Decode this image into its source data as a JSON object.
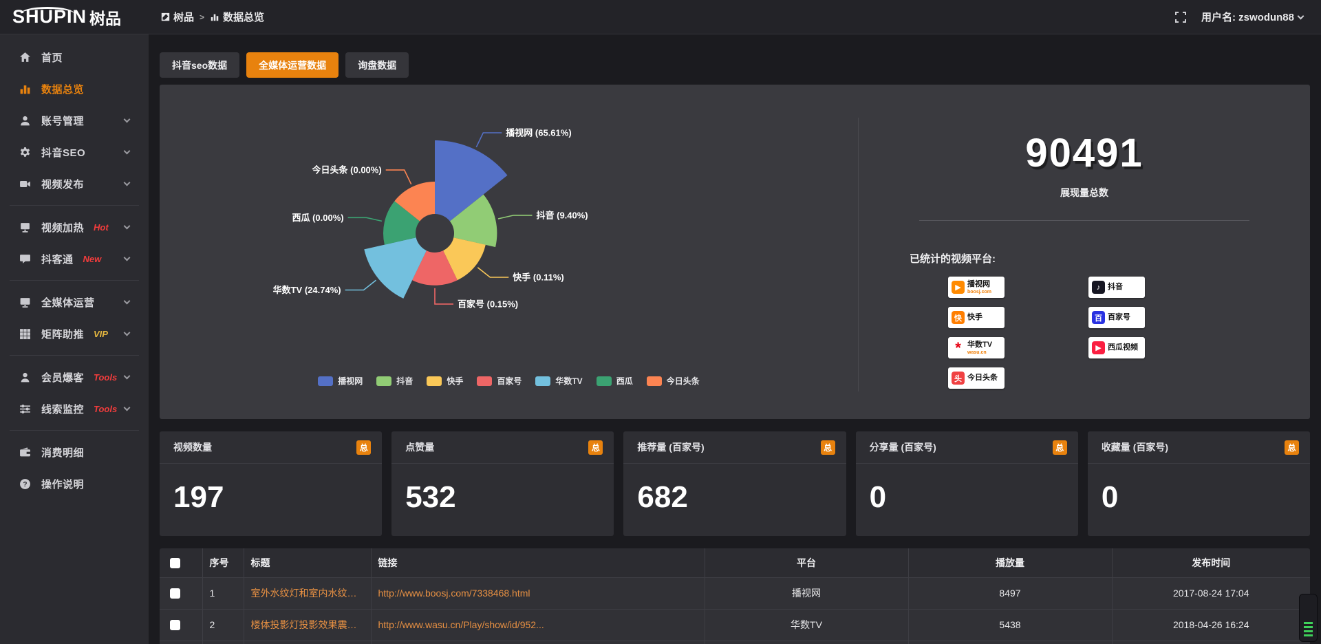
{
  "topbar": {
    "logo_en": "SHUPIN",
    "logo_cn": "树品",
    "breadcrumb": {
      "root": "树品",
      "separator": ">",
      "current": "数据总览"
    },
    "username": "用户名: zswodun88"
  },
  "sidebar": {
    "items": [
      {
        "icon": "home-icon",
        "label": "首页",
        "active": false,
        "chevron": false,
        "badge": "",
        "divider_after": false
      },
      {
        "icon": "bar-chart-icon",
        "label": "数据总览",
        "active": true,
        "chevron": false,
        "badge": "",
        "divider_after": false
      },
      {
        "icon": "user-icon",
        "label": "账号管理",
        "active": false,
        "chevron": true,
        "badge": "",
        "divider_after": false
      },
      {
        "icon": "gear-icon",
        "label": "抖音SEO",
        "active": false,
        "chevron": true,
        "badge": "",
        "divider_after": false
      },
      {
        "icon": "video-camera-icon",
        "label": "视频发布",
        "active": false,
        "chevron": true,
        "badge": "",
        "divider_after": true
      },
      {
        "icon": "screen-icon",
        "label": "视频加热",
        "active": false,
        "chevron": true,
        "badge": "Hot",
        "badge_color": "#f23c3c",
        "divider_after": false
      },
      {
        "icon": "chat-bubble-icon",
        "label": "抖客通",
        "active": false,
        "chevron": true,
        "badge": "New",
        "badge_color": "#f23c3c",
        "divider_after": true
      },
      {
        "icon": "monitor-icon",
        "label": "全媒体运营",
        "active": false,
        "chevron": true,
        "badge": "",
        "divider_after": false
      },
      {
        "icon": "grid-icon",
        "label": "矩阵助推",
        "active": false,
        "chevron": true,
        "badge": "VIP",
        "badge_color": "#e7b940",
        "divider_after": true
      },
      {
        "icon": "person-icon",
        "label": "会员爆客",
        "active": false,
        "chevron": true,
        "badge": "Tools",
        "badge_color": "#f23c3c",
        "divider_after": false
      },
      {
        "icon": "sliders-icon",
        "label": "线索监控",
        "active": false,
        "chevron": true,
        "badge": "Tools",
        "badge_color": "#f23c3c",
        "divider_after": true
      },
      {
        "icon": "wallet-icon",
        "label": "消费明细",
        "active": false,
        "chevron": false,
        "badge": "",
        "divider_after": false
      },
      {
        "icon": "question-icon",
        "label": "操作说明",
        "active": false,
        "chevron": false,
        "badge": "",
        "divider_after": false
      }
    ]
  },
  "tabs": [
    {
      "label": "抖音seo数据",
      "active": false
    },
    {
      "label": "全媒体运营数据",
      "active": true
    },
    {
      "label": "询盘数据",
      "active": false
    }
  ],
  "chart_data": {
    "type": "pie",
    "subtype": "nightingale-rose",
    "categories": [
      "播视网",
      "抖音",
      "快手",
      "百家号",
      "华数TV",
      "西瓜",
      "今日头条"
    ],
    "values": [
      65.61,
      9.4,
      0.11,
      0.15,
      24.74,
      0.0,
      0.0
    ],
    "unit": "%",
    "labels": [
      "播视网 (65.61%)",
      "抖音 (9.40%)",
      "快手 (0.11%)",
      "百家号 (0.15%)",
      "华数TV (24.74%)",
      "西瓜 (0.00%)",
      "今日头条 (0.00%)"
    ],
    "colors": [
      "#5470c6",
      "#91cc75",
      "#fac858",
      "#ee6666",
      "#73c0de",
      "#3ba272",
      "#fc8452"
    ],
    "legend": [
      "播视网",
      "抖音",
      "快手",
      "百家号",
      "华数TV",
      "西瓜",
      "今日头条"
    ],
    "legend_position": "bottom"
  },
  "summary": {
    "total_value": "90491",
    "total_label": "展现量总数",
    "platforms_label": "已统计的视频平台:",
    "platform_columns": [
      [
        {
          "name": "播视网",
          "sub": "boosj.com",
          "icon_glyph": "▶",
          "icon_color": "#ff8a00",
          "icon_name": "boosj-logo"
        },
        {
          "name": "快手",
          "sub": "",
          "icon_glyph": "快",
          "icon_color": "#ff7e00",
          "icon_name": "kuaishou-logo"
        },
        {
          "name": "华数TV",
          "sub": "wasu.cn",
          "icon_glyph": "*",
          "icon_color": "#e60012",
          "icon_name": "wasu-logo"
        },
        {
          "name": "今日头条",
          "sub": "",
          "icon_glyph": "头",
          "icon_color": "#f04142",
          "icon_name": "toutiao-logo"
        }
      ],
      [
        {
          "name": "抖音",
          "sub": "",
          "icon_glyph": "♪",
          "icon_color": "#161622",
          "icon_name": "douyin-logo"
        },
        {
          "name": "百家号",
          "sub": "",
          "icon_glyph": "百",
          "icon_color": "#2932e1",
          "icon_name": "baijiahao-logo"
        },
        {
          "name": "西瓜视频",
          "sub": "",
          "icon_glyph": "▶",
          "icon_color": "#fa1f41",
          "icon_name": "xigua-logo"
        }
      ]
    ]
  },
  "stat_cards": [
    {
      "title": "视频数量",
      "badge": "总",
      "value": "197"
    },
    {
      "title": "点赞量",
      "badge": "总",
      "value": "532"
    },
    {
      "title": "推荐量 (百家号)",
      "badge": "总",
      "value": "682"
    },
    {
      "title": "分享量 (百家号)",
      "badge": "总",
      "value": "0"
    },
    {
      "title": "收藏量 (百家号)",
      "badge": "总",
      "value": "0"
    }
  ],
  "table": {
    "headers": [
      "序号",
      "标题",
      "链接",
      "平台",
      "播放量",
      "发布时间"
    ],
    "rows": [
      {
        "index": "1",
        "title": "室外水纹灯和室内水纹灯的区别和简介",
        "link": "http://www.boosj.com/7338468.html",
        "platform": "播视网",
        "plays": "8497",
        "published": "2017-08-24 17:04"
      },
      {
        "index": "2",
        "title": "楼体投影灯投影效果震撼上市",
        "link": "http://www.wasu.cn/Play/show/id/952...",
        "platform": "华数TV",
        "plays": "5438",
        "published": "2018-04-26 16:24"
      }
    ],
    "partial_row": true
  },
  "accent_color": "#e8820e"
}
